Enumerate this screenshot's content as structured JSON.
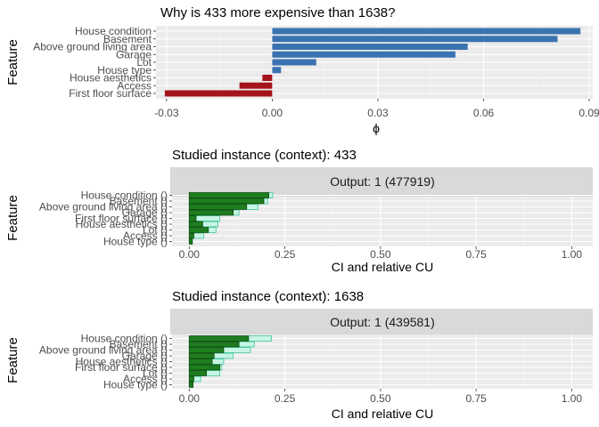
{
  "chart_data": [
    {
      "type": "bar",
      "orientation": "horizontal",
      "title": "Why is 433 more expensive than 1638?",
      "xlabel": "ϕ",
      "ylabel": "Feature",
      "xlim": [
        -0.033,
        0.091
      ],
      "xticks": [
        -0.03,
        0.0,
        0.03,
        0.06,
        0.09
      ],
      "xtick_labels": [
        "-0.03",
        "0.00",
        "0.03",
        "0.06",
        "0.09"
      ],
      "grid": true,
      "categories": [
        "House condition",
        "Basement",
        "Above ground living area",
        "Garage",
        "Lot",
        "House type",
        "House aesthetics",
        "Access",
        "First floor surface"
      ],
      "values": [
        0.0875,
        0.081,
        0.0555,
        0.052,
        0.0125,
        0.0025,
        -0.0028,
        -0.0093,
        -0.0305
      ],
      "colors": {
        "positive": "#3a73b1",
        "negative": "#a3141b"
      }
    },
    {
      "type": "bar",
      "orientation": "horizontal",
      "title": "Studied instance (context): 433",
      "strip_label": "Output: 1 (477919)",
      "xlabel": "CI and relative CU",
      "ylabel": "Feature",
      "xlim": [
        -0.045,
        1.055
      ],
      "xticks": [
        0.0,
        0.25,
        0.5,
        0.75,
        1.0
      ],
      "xtick_labels": [
        "0.00",
        "0.25",
        "0.50",
        "0.75",
        "1.00"
      ],
      "grid": true,
      "categories": [
        "House condition ()",
        "Basement ()",
        "Above ground living area ()",
        "Garage ()",
        "First floor surface ()",
        "House aesthetics ()",
        "Lot ()",
        "Access ()",
        "House type ()"
      ],
      "series": [
        {
          "name": "",
          "values": [
            0.218,
            0.205,
            0.18,
            0.13,
            0.08,
            0.075,
            0.07,
            0.038,
            0.008
          ]
        },
        {
          "name": "",
          "values": [
            0.208,
            0.195,
            0.15,
            0.115,
            0.018,
            0.035,
            0.05,
            0.012,
            0.008
          ]
        }
      ],
      "colors": {
        "outer_fill": "#c8f5e5",
        "outer_stroke": "#3fc79a",
        "inner_fill": "#1f7d1f",
        "inner_stroke": "#0e4a0e"
      }
    },
    {
      "type": "bar",
      "orientation": "horizontal",
      "title": "Studied instance (context): 1638",
      "strip_label": "Output: 1 (439581)",
      "xlabel": "CI and relative CU",
      "ylabel": "Feature",
      "xlim": [
        -0.045,
        1.055
      ],
      "xticks": [
        0.0,
        0.25,
        0.5,
        0.75,
        1.0
      ],
      "xtick_labels": [
        "0.00",
        "0.25",
        "0.50",
        "0.75",
        "1.00"
      ],
      "grid": true,
      "categories": [
        "House condition ()",
        "Basement ()",
        "Above ground living area ()",
        "Garage ()",
        "House aesthetics ()",
        "First floor surface ()",
        "Lot ()",
        "Access ()",
        "House type ()"
      ],
      "series": [
        {
          "name": "",
          "values": [
            0.215,
            0.17,
            0.16,
            0.115,
            0.09,
            0.085,
            0.08,
            0.03,
            0.01
          ]
        },
        {
          "name": "",
          "values": [
            0.155,
            0.13,
            0.09,
            0.065,
            0.06,
            0.08,
            0.045,
            0.012,
            0.01
          ]
        }
      ],
      "colors": {
        "outer_fill": "#c8f5e5",
        "outer_stroke": "#3fc79a",
        "inner_fill": "#1f7d1f",
        "inner_stroke": "#0e4a0e"
      }
    }
  ]
}
